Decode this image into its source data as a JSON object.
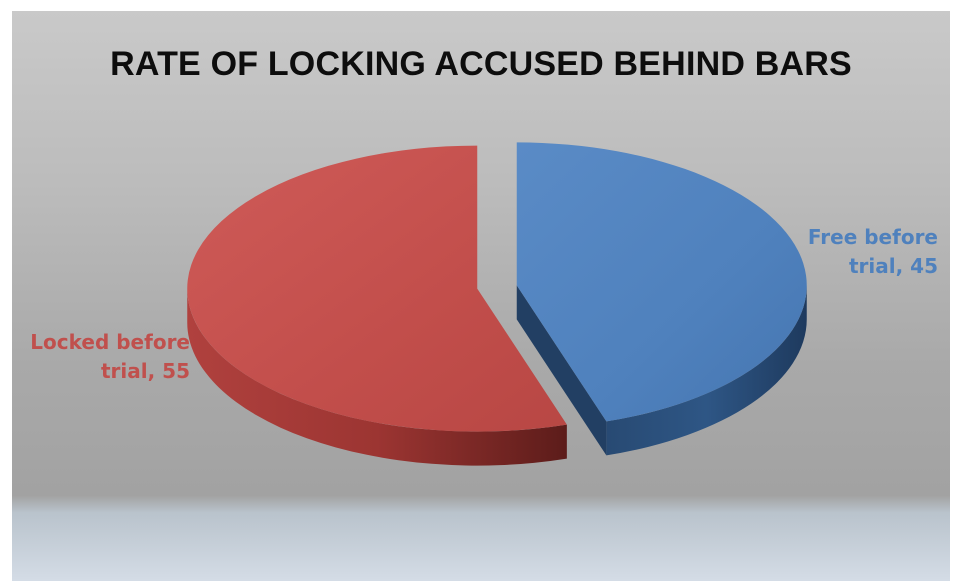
{
  "chart_data": {
    "type": "pie",
    "title": "RATE OF LOCKING ACCUSED BEHIND BARS",
    "slices": [
      {
        "line1": "Free  before",
        "line2": "trial, 45",
        "value": 45,
        "color": "#4f81bd"
      },
      {
        "line1": "Locked before",
        "line2": "trial, 55",
        "value": 55,
        "color": "#c0504d"
      }
    ],
    "three_d": true,
    "exploded": true,
    "legend": "none",
    "data_labels": "outside"
  }
}
